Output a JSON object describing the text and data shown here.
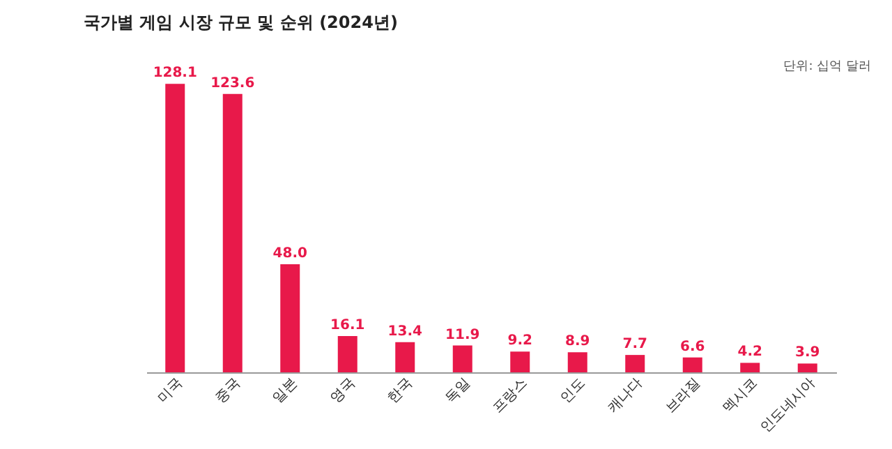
{
  "chart_data": {
    "type": "bar",
    "title": "국가별 게임 시장 규모 및 순위 (2024년)",
    "categories": [
      "미국",
      "중국",
      "일본",
      "영국",
      "한국",
      "독일",
      "프랑스",
      "인도",
      "캐나다",
      "브라질",
      "멕시코",
      "인도네시아"
    ],
    "values": [
      128.1,
      123.6,
      48.0,
      16.1,
      13.4,
      11.9,
      9.2,
      8.9,
      7.7,
      6.6,
      4.2,
      3.9
    ],
    "value_labels": [
      "128.1",
      "123.6",
      "48.0",
      "16.1",
      "13.4",
      "11.9",
      "9.2",
      "8.9",
      "7.7",
      "6.6",
      "4.2",
      "3.9"
    ],
    "color": "#e8194a",
    "annotations": [
      "단위: 십억 달러"
    ],
    "grid": false
  }
}
